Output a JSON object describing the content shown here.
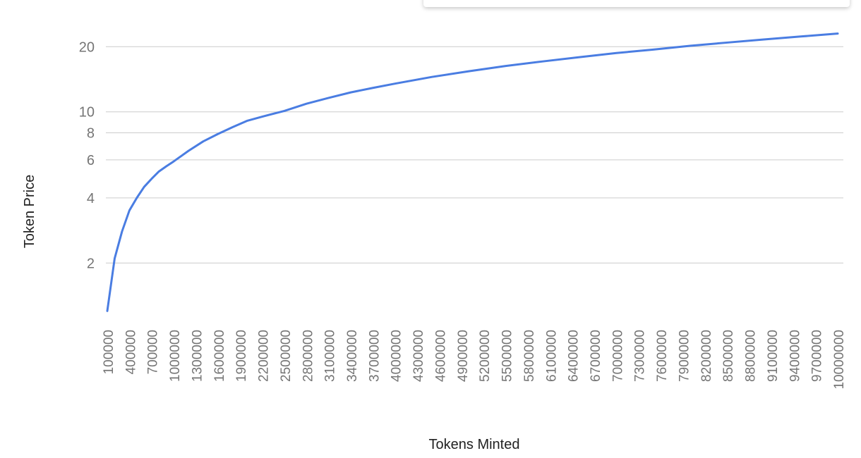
{
  "chart_data": {
    "type": "line",
    "title": "",
    "xlabel": "Tokens Minted",
    "ylabel": "Token Price",
    "y_scale": "log",
    "ylim": [
      1.1,
      24
    ],
    "x_tick_labels": [
      "100000",
      "400000",
      "700000",
      "1000000",
      "1300000",
      "1600000",
      "1900000",
      "2200000",
      "2500000",
      "2800000",
      "3100000",
      "3400000",
      "3700000",
      "4000000",
      "4300000",
      "4600000",
      "4900000",
      "5200000",
      "5500000",
      "5800000",
      "6100000",
      "6400000",
      "6700000",
      "7000000",
      "7300000",
      "7600000",
      "7900000",
      "8200000",
      "8500000",
      "8800000",
      "9100000",
      "9400000",
      "9700000",
      "10000000"
    ],
    "y_ticks": [
      2,
      4,
      6,
      8,
      10,
      20
    ],
    "grid": true,
    "legend": "none",
    "series": [
      {
        "color": "#4a7de2",
        "x": [
          100000,
          200000,
          300000,
          400000,
          500000,
          600000,
          700000,
          800000,
          900000,
          1000000,
          1200000,
          1400000,
          1600000,
          1800000,
          2000000,
          2200000,
          2500000,
          2800000,
          3100000,
          3400000,
          3700000,
          4000000,
          4500000,
          5000000,
          5500000,
          6000000,
          6500000,
          7000000,
          7500000,
          8000000,
          8500000,
          9000000,
          9500000,
          10000000
        ],
        "values": [
          1.2,
          2.1,
          2.8,
          3.5,
          4.0,
          4.5,
          4.9,
          5.3,
          5.6,
          5.9,
          6.6,
          7.3,
          7.9,
          8.5,
          9.1,
          9.5,
          10.1,
          10.9,
          11.6,
          12.3,
          12.9,
          13.5,
          14.5,
          15.4,
          16.3,
          17.1,
          17.9,
          18.7,
          19.4,
          20.2,
          20.9,
          21.6,
          22.3,
          23.0
        ]
      }
    ]
  }
}
